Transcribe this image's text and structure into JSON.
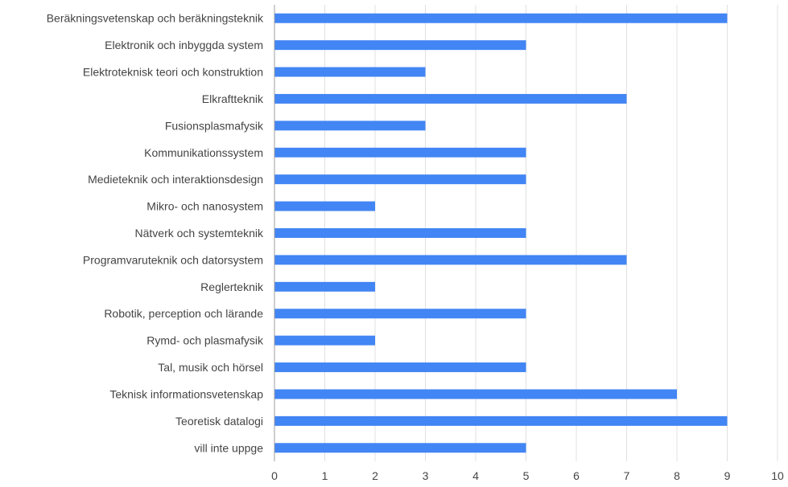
{
  "chart_data": {
    "type": "bar",
    "orientation": "horizontal",
    "categories": [
      "Beräkningsvetenskap och beräkningsteknik",
      "Elektronik och inbyggda system",
      "Elektroteknisk teori och konstruktion",
      "Elkraftteknik",
      "Fusionsplasmafysik",
      "Kommunikationssystem",
      "Medieteknik och interaktionsdesign",
      "Mikro- och nanosystem",
      "Nätverk och systemteknik",
      "Programvaruteknik och datorsystem",
      "Reglerteknik",
      "Robotik, perception och lärande",
      "Rymd- och plasmafysik",
      "Tal, musik och hörsel",
      "Teknisk informationsvetenskap",
      "Teoretisk datalogi",
      "vill inte uppge"
    ],
    "values": [
      9,
      5,
      3,
      7,
      3,
      5,
      5,
      2,
      5,
      7,
      2,
      5,
      2,
      5,
      8,
      9,
      5
    ],
    "xlim": [
      0,
      10
    ],
    "xticks": [
      "0",
      "1",
      "2",
      "3",
      "4",
      "5",
      "6",
      "7",
      "8",
      "9",
      "10"
    ],
    "grid": "vertical",
    "legend": "none",
    "colors": {
      "bar": "#4285f4",
      "grid": "#e0e0e0",
      "axis": "#9e9e9e",
      "text": "#444444"
    }
  }
}
